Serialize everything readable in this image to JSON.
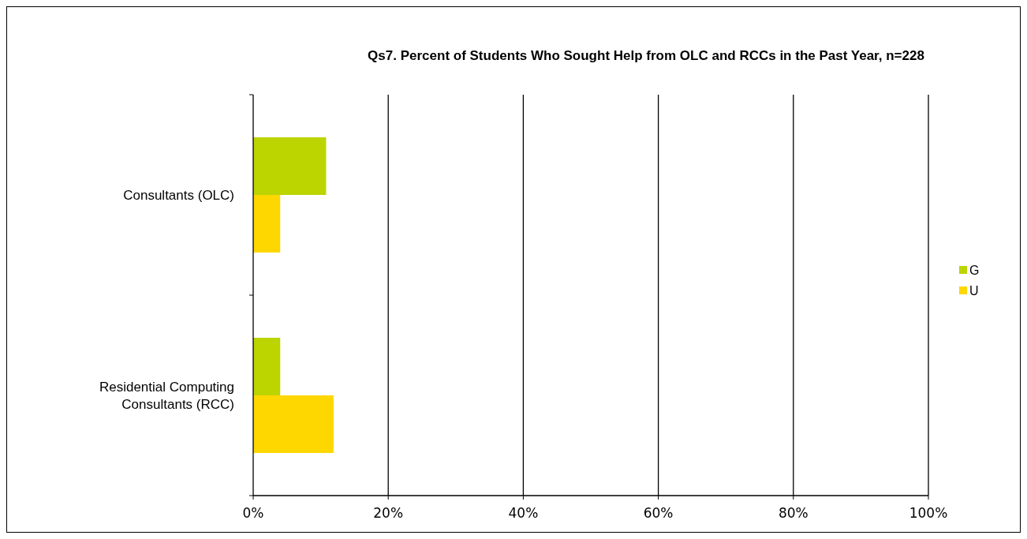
{
  "chart_data": {
    "type": "bar",
    "orientation": "horizontal",
    "title": "Qs7. Percent of Students Who Sought Help from OLC and RCCs in the Past Year, n=228",
    "categories": [
      "Consultants (OLC)",
      "Residential Computing Consultants (RCC)"
    ],
    "series": [
      {
        "name": "G",
        "color": "#bcd400",
        "values": [
          10.8,
          4.0
        ]
      },
      {
        "name": "U",
        "color": "#ffd700",
        "values": [
          4.0,
          11.9
        ]
      }
    ],
    "xlim": [
      0,
      100
    ],
    "xticks": [
      {
        "value": 0,
        "label": "0%"
      },
      {
        "value": 20,
        "label": "20%"
      },
      {
        "value": 40,
        "label": "40%"
      },
      {
        "value": 60,
        "label": "60%"
      },
      {
        "value": 80,
        "label": "80%"
      },
      {
        "value": 100,
        "label": "100%"
      }
    ],
    "grid": "x",
    "legend": "right"
  }
}
